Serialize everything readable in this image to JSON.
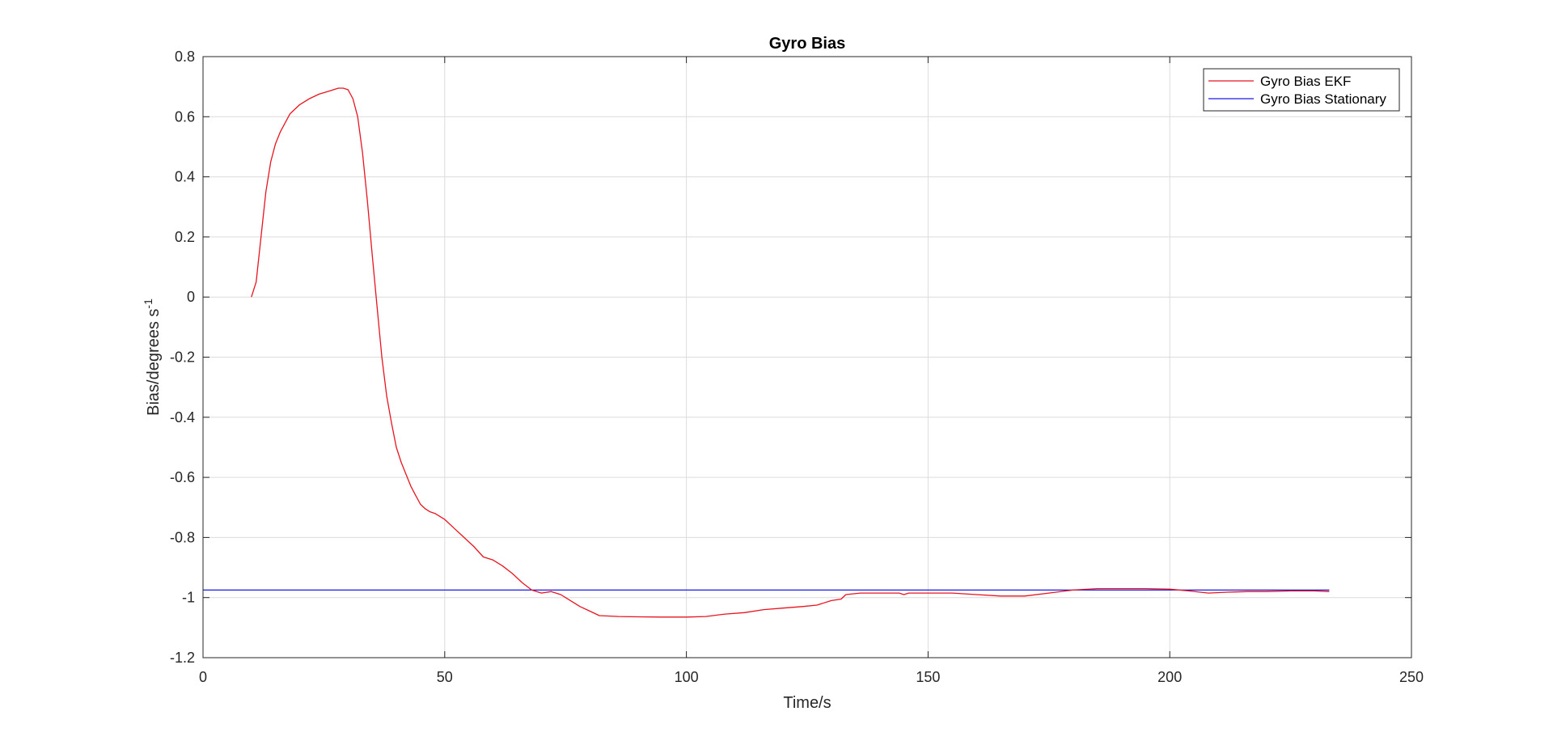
{
  "chart_data": {
    "type": "line",
    "title": "Gyro Bias",
    "xlabel": "Time/s",
    "ylabel": "Bias/degrees s",
    "ylabel_superscript": "-1",
    "xlim": [
      0,
      250
    ],
    "ylim": [
      -1.2,
      0.8
    ],
    "xticks": [
      "0",
      "50",
      "100",
      "150",
      "200",
      "250"
    ],
    "yticks": [
      "0.8",
      "0.6",
      "0.4",
      "0.2",
      "0",
      "-0.2",
      "-0.4",
      "-0.6",
      "-0.8",
      "-1",
      "-1.2"
    ],
    "grid": true,
    "legend_location": "top-right",
    "series": [
      {
        "name": "Gyro Bias EKF",
        "color": "#e8141e",
        "x": [
          10,
          11,
          12,
          13,
          14,
          15,
          16,
          17,
          18,
          20,
          22,
          24,
          26,
          28,
          29,
          30,
          31,
          32,
          33,
          34,
          35,
          36,
          37,
          38,
          39,
          40,
          41,
          42,
          43,
          44,
          45,
          46,
          47,
          48,
          50,
          52,
          54,
          56,
          58,
          60,
          62,
          64,
          66,
          68,
          70,
          72,
          74,
          76,
          78,
          80,
          82,
          86,
          90,
          95,
          100,
          104,
          108,
          112,
          116,
          120,
          124,
          127,
          130,
          132,
          133,
          136,
          140,
          144,
          145,
          146,
          150,
          155,
          160,
          165,
          170,
          175,
          180,
          185,
          190,
          195,
          200,
          204,
          208,
          212,
          216,
          220,
          225,
          230,
          233
        ],
        "values": [
          0,
          0.05,
          0.2,
          0.35,
          0.45,
          0.51,
          0.55,
          0.58,
          0.61,
          0.64,
          0.66,
          0.675,
          0.685,
          0.695,
          0.695,
          0.69,
          0.66,
          0.6,
          0.48,
          0.32,
          0.14,
          -0.03,
          -0.2,
          -0.33,
          -0.42,
          -0.5,
          -0.55,
          -0.59,
          -0.63,
          -0.66,
          -0.69,
          -0.705,
          -0.715,
          -0.72,
          -0.74,
          -0.77,
          -0.8,
          -0.83,
          -0.865,
          -0.875,
          -0.895,
          -0.92,
          -0.95,
          -0.975,
          -0.985,
          -0.98,
          -0.99,
          -1.01,
          -1.03,
          -1.045,
          -1.06,
          -1.063,
          -1.064,
          -1.065,
          -1.065,
          -1.063,
          -1.055,
          -1.05,
          -1.04,
          -1.035,
          -1.03,
          -1.025,
          -1.01,
          -1.005,
          -0.99,
          -0.985,
          -0.985,
          -0.985,
          -0.99,
          -0.985,
          -0.985,
          -0.985,
          -0.99,
          -0.995,
          -0.995,
          -0.985,
          -0.975,
          -0.97,
          -0.97,
          -0.97,
          -0.972,
          -0.978,
          -0.985,
          -0.982,
          -0.98,
          -0.98,
          -0.978,
          -0.978,
          -0.98
        ]
      },
      {
        "name": "Gyro Bias Stationary",
        "color": "#1a1ae6",
        "x": [
          0,
          233
        ],
        "values": [
          -0.975,
          -0.975
        ]
      }
    ]
  }
}
